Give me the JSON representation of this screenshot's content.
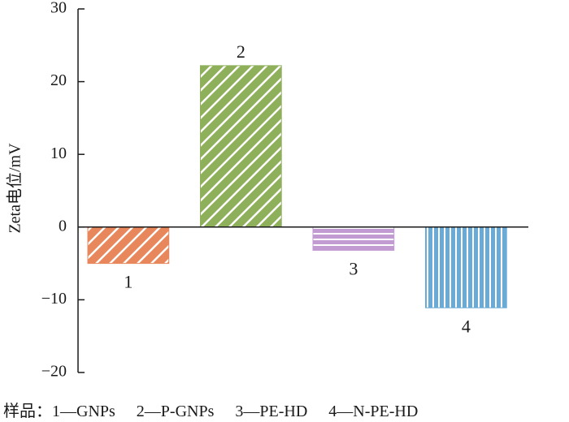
{
  "chart_data": {
    "type": "bar",
    "categories": [
      "1",
      "2",
      "3",
      "4"
    ],
    "values": [
      -5,
      22.2,
      -3.2,
      -11.1
    ],
    "xlabel": "",
    "ylabel": "Zeta电位/mV",
    "ylim": [
      -20,
      30
    ],
    "yticks": [
      -20,
      -10,
      0,
      10,
      20,
      30
    ],
    "ytick_labels": [
      "−20",
      "−10",
      "0",
      "10",
      "20",
      "30"
    ],
    "grid": false,
    "bar_colors": [
      "#e8875b",
      "#8fb05a",
      "#c39bd3",
      "#6aaad6"
    ],
    "bar_patterns": [
      "diagonal",
      "diagonal",
      "horizontal",
      "vertical"
    ]
  },
  "legend": {
    "prefix": "样品：",
    "items": [
      "1—GNPs",
      "2—P-GNPs",
      "3—PE-HD",
      "4—N-PE-HD"
    ]
  }
}
